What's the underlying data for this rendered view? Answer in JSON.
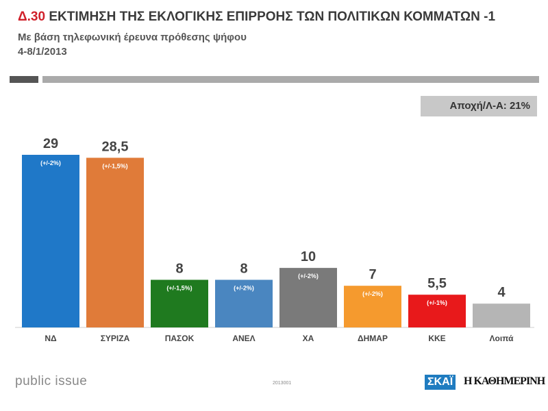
{
  "header": {
    "code": "Δ.30",
    "title": "ΕΚΤΙΜΗΣΗ ΤΗΣ ΕΚΛΟΓΙΚΗΣ ΕΠΙΡΡΟΗΣ ΤΩΝ ΠΟΛΙΤΙΚΩΝ ΚΟΜΜΑΤΩΝ -1",
    "subtitle": "Με βάση τηλεφωνική έρευνα πρόθεσης ψήφου",
    "date": "4-8/1/2013"
  },
  "abstention": "Αποχή/Λ-Α: 21%",
  "chart_data": {
    "type": "bar",
    "categories": [
      "ΝΔ",
      "ΣΥΡΙΖΑ",
      "ΠΑΣΟΚ",
      "ΑΝΕΛ",
      "ΧΑ",
      "ΔΗΜΑΡ",
      "ΚΚΕ",
      "Λοιπά"
    ],
    "values": [
      29,
      28.5,
      8,
      8,
      10,
      7,
      5.5,
      4
    ],
    "value_labels": [
      "29",
      "28,5",
      "8",
      "8",
      "10",
      "7",
      "5,5",
      "4"
    ],
    "error_labels": [
      "(+/-2%)",
      "(+/-1,5%)",
      "(+/-1,5%)",
      "(+/-2%)",
      "(+/-2%)",
      "(+/-2%)",
      "(+/-1%)",
      ""
    ],
    "colors": [
      "#1f78c8",
      "#e07b39",
      "#1f7a1f",
      "#4a86c0",
      "#7a7a7a",
      "#f59a2e",
      "#e8191b",
      "#b5b5b5"
    ],
    "ylim": [
      0,
      30
    ],
    "grid": false
  },
  "footer": {
    "brand": "public issue",
    "code": "2013001",
    "logo1": "ΣΚΑΪ",
    "logo2": "Η ΚΑΘΗΜΕΡΙΝΗ"
  }
}
